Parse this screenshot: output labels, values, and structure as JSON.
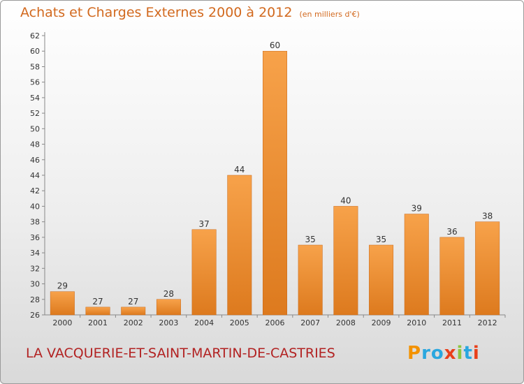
{
  "header": {
    "title": "Achats et Charges Externes 2000 à 2012",
    "subtitle": "(en milliers d'€)"
  },
  "footer": {
    "commune": "LA VACQUERIE-ET-SAINT-MARTIN-DE-CASTRIES",
    "brand": "Proxiti"
  },
  "colors": {
    "title": "#d2691e",
    "commune": "#b22222",
    "bar_light": "#f7a24a",
    "bar_dark": "#dd7a1e",
    "brand_letters": [
      "#f39200",
      "#2aa7df",
      "#2aa7df",
      "#e9401b",
      "#8dc63f",
      "#2aa7df",
      "#e9401b"
    ]
  },
  "chart_data": {
    "type": "bar",
    "title": "Achats et Charges Externes 2000 à 2012",
    "subtitle": "(en milliers d'€)",
    "categories": [
      "2000",
      "2001",
      "2002",
      "2003",
      "2004",
      "2005",
      "2006",
      "2007",
      "2008",
      "2009",
      "2010",
      "2011",
      "2012"
    ],
    "values": [
      29,
      27,
      27,
      28,
      37,
      44,
      60,
      35,
      40,
      35,
      39,
      36,
      38
    ],
    "ylim": [
      26,
      62
    ],
    "yticks": [
      26,
      28,
      30,
      32,
      34,
      36,
      38,
      40,
      42,
      44,
      46,
      48,
      50,
      52,
      54,
      56,
      58,
      60,
      62
    ],
    "xlabel": "",
    "ylabel": "",
    "grid": false,
    "legend": "none",
    "data_labels": true
  }
}
